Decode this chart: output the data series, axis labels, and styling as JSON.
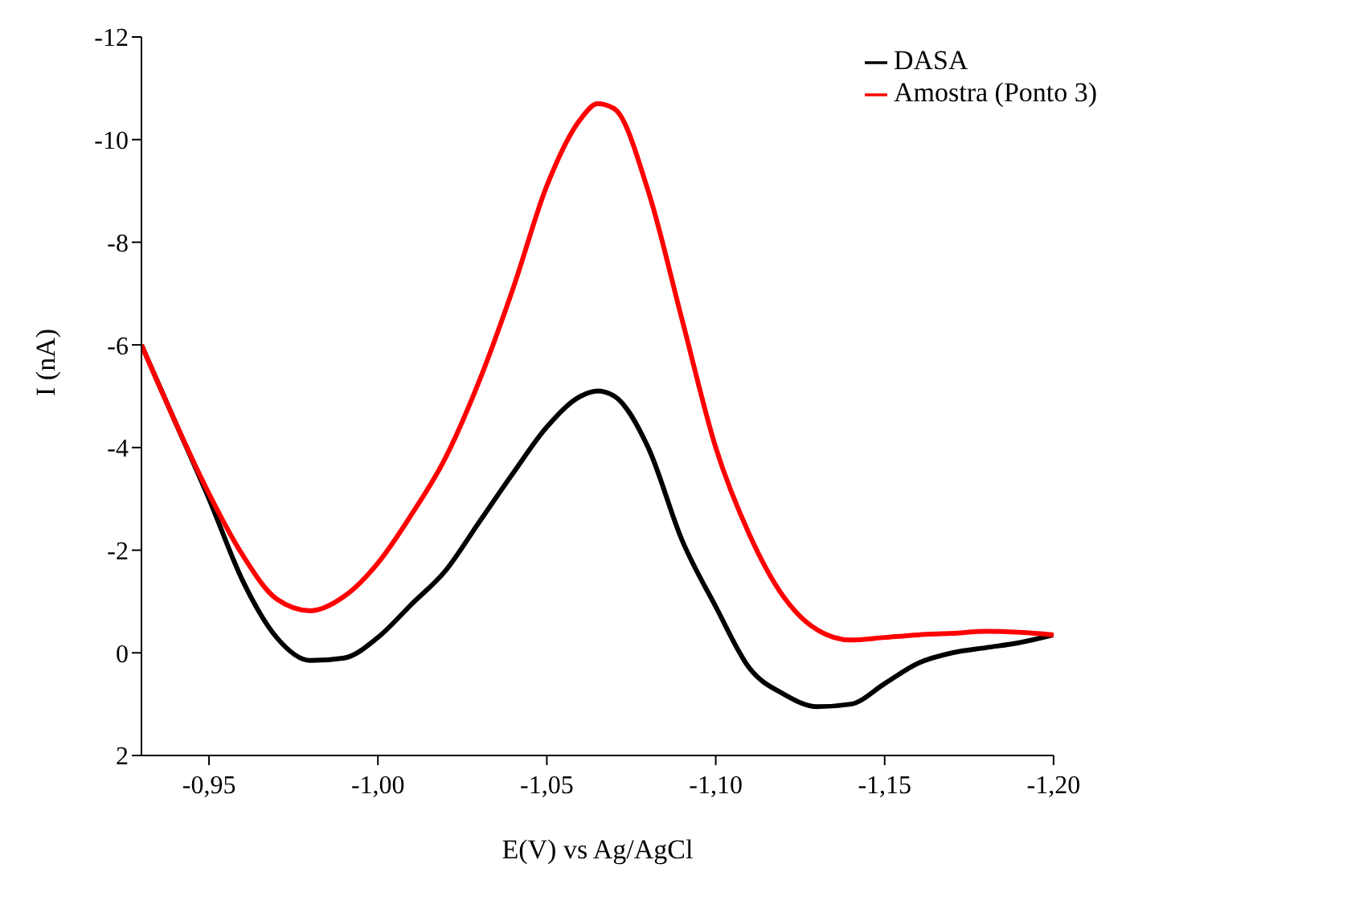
{
  "chart_data": {
    "type": "line",
    "xlabel": "E(V) vs Ag/AgCl",
    "ylabel": "I (nA)",
    "x": [
      -0.93,
      -0.94,
      -0.95,
      -0.96,
      -0.97,
      -0.98,
      -0.99,
      -1.0,
      -1.01,
      -1.02,
      -1.03,
      -1.04,
      -1.05,
      -1.06,
      -1.065,
      -1.07,
      -1.08,
      -1.09,
      -1.1,
      -1.11,
      -1.12,
      -1.13,
      -1.14,
      -1.15,
      -1.16,
      -1.17,
      -1.18,
      -1.19,
      -1.2
    ],
    "series": [
      {
        "name": "DASA",
        "color": "#000000",
        "values": [
          -6.0,
          -4.5,
          -3.0,
          -1.4,
          -0.3,
          0.15,
          0.1,
          -0.3,
          -0.95,
          -1.6,
          -2.55,
          -3.5,
          -4.4,
          -5.0,
          -5.1,
          -5.0,
          -4.0,
          -2.2,
          -0.9,
          0.3,
          0.8,
          1.05,
          1.0,
          0.6,
          0.2,
          0.0,
          -0.1,
          -0.2,
          -0.35
        ]
      },
      {
        "name": "Amostra (Ponto 3)",
        "color": "#ff0000",
        "values": [
          -6.0,
          -4.5,
          -3.1,
          -1.9,
          -1.05,
          -0.82,
          -1.1,
          -1.75,
          -2.7,
          -3.8,
          -5.3,
          -7.1,
          -9.1,
          -10.4,
          -10.7,
          -10.6,
          -9.0,
          -6.5,
          -4.0,
          -2.3,
          -1.1,
          -0.45,
          -0.25,
          -0.3,
          -0.35,
          -0.38,
          -0.42,
          -0.4,
          -0.35
        ]
      }
    ],
    "xlim": [
      -0.93,
      -1.2
    ],
    "xticks": [
      {
        "value": -0.95,
        "label": "-0,95"
      },
      {
        "value": -1.0,
        "label": "-1,00"
      },
      {
        "value": -1.05,
        "label": "-1,05"
      },
      {
        "value": -1.1,
        "label": "-1,10"
      },
      {
        "value": -1.15,
        "label": "-1,15"
      },
      {
        "value": -1.2,
        "label": "-1,20"
      }
    ],
    "ylim": [
      2,
      -12
    ],
    "yticks": [
      2,
      0,
      -2,
      -4,
      -6,
      -8,
      -10,
      -12
    ],
    "legend": "top right",
    "grid": false,
    "marker": "none",
    "line_style": "solid"
  }
}
